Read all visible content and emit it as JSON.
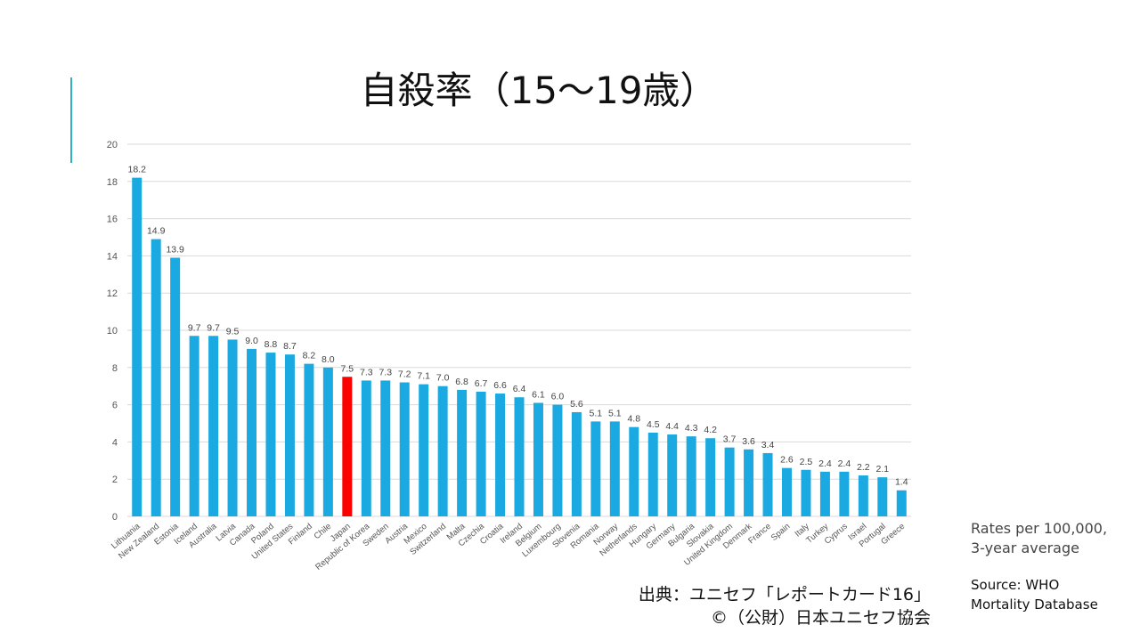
{
  "chart_data": {
    "type": "bar",
    "title": "自殺率（15〜19歳）",
    "ylim": [
      0,
      20
    ],
    "yticks": [
      0,
      2,
      4,
      6,
      8,
      10,
      12,
      14,
      16,
      18,
      20
    ],
    "grid": true,
    "categories": [
      "Lithuania",
      "New Zealand",
      "Estonia",
      "Iceland",
      "Australia",
      "Latvia",
      "Canada",
      "Poland",
      "United States",
      "Finland",
      "Chile",
      "Japan",
      "Republic of Korea",
      "Sweden",
      "Austria",
      "Mexico",
      "Switzerland",
      "Malta",
      "Czechia",
      "Croatia",
      "Ireland",
      "Belgium",
      "Luxembourg",
      "Slovenia",
      "Romania",
      "Norway",
      "Netherlands",
      "Hungary",
      "Germany",
      "Bulgaria",
      "Slovakia",
      "United Kingdom",
      "Denmark",
      "France",
      "Spain",
      "Italy",
      "Turkey",
      "Cyprus",
      "Israel",
      "Portugal",
      "Greece"
    ],
    "values": [
      18.2,
      14.9,
      13.9,
      9.7,
      9.7,
      9.5,
      9.0,
      8.8,
      8.7,
      8.2,
      8.0,
      7.5,
      7.3,
      7.3,
      7.2,
      7.1,
      7.0,
      6.8,
      6.7,
      6.6,
      6.4,
      6.1,
      6.0,
      5.6,
      5.1,
      5.1,
      4.8,
      4.5,
      4.4,
      4.3,
      4.2,
      3.7,
      3.6,
      3.4,
      2.6,
      2.5,
      2.4,
      2.4,
      2.2,
      2.1,
      1.4
    ],
    "highlight": "Japan",
    "colors": {
      "bar": "#1ba9e1",
      "highlight": "#ff0000",
      "grid": "#d9d9d9",
      "accent": "#2fb3c4"
    }
  },
  "notes": {
    "rates": [
      "Rates per 100,000,",
      "3-year average"
    ],
    "source": [
      "Source: WHO",
      "Mortality Database"
    ],
    "credit": [
      "出典：ユニセフ「レポートカード16」",
      "©（公財）日本ユニセフ協会"
    ]
  }
}
